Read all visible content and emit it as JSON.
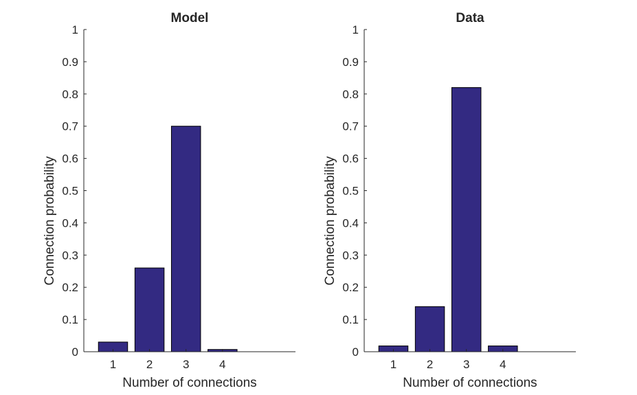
{
  "chart_data": [
    {
      "type": "bar",
      "title": "Model",
      "xlabel": "Number of connections",
      "ylabel": "Connection probability",
      "categories": [
        "1",
        "2",
        "3",
        "4"
      ],
      "values": [
        0.03,
        0.26,
        0.7,
        0.007
      ],
      "xlim": [
        0.2,
        6.0
      ],
      "ylim": [
        0,
        1
      ],
      "yticks": [
        "0",
        "0.1",
        "0.2",
        "0.3",
        "0.4",
        "0.5",
        "0.6",
        "0.7",
        "0.8",
        "0.9",
        "1"
      ],
      "bar_color": "#332a82",
      "grid": false
    },
    {
      "type": "bar",
      "title": "Data",
      "xlabel": "Number of connections",
      "ylabel": "Connection probability",
      "categories": [
        "1",
        "2",
        "3",
        "4"
      ],
      "values": [
        0.018,
        0.14,
        0.82,
        0.018
      ],
      "xlim": [
        0.2,
        6.0
      ],
      "ylim": [
        0,
        1
      ],
      "yticks": [
        "0",
        "0.1",
        "0.2",
        "0.3",
        "0.4",
        "0.5",
        "0.6",
        "0.7",
        "0.8",
        "0.9",
        "1"
      ],
      "bar_color": "#332a82",
      "grid": false
    }
  ]
}
